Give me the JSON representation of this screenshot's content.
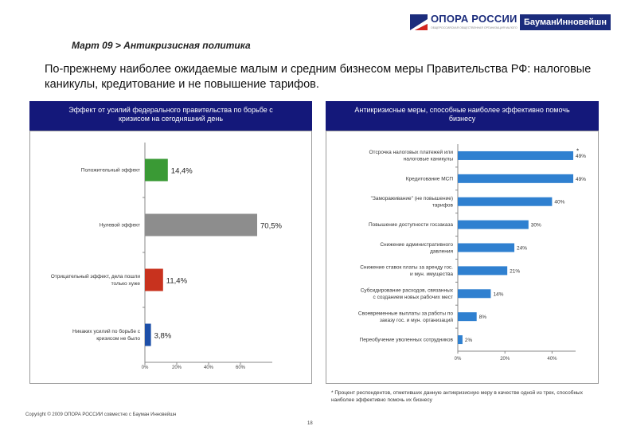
{
  "header": {
    "logo_text": "ОПОРА РОССИИ",
    "logo_subtext": "ОБЩЕРОССИЙСКАЯ ОБЩЕСТВЕННАЯ ОРГАНИЗАЦИЯ МАЛОГО И СРЕДНЕГО ПРЕДПРИНИМАТЕЛЬСТВА",
    "partner_logo_text": "БауманИнновейшн",
    "colors": {
      "brand": "#1b2c7c",
      "flag_red": "#d4261f"
    }
  },
  "section_title": "Март 09 > Антикризисная политика",
  "headline": "По-прежнему наиболее ожидаемые малым и средним бизнесом меры Правительства РФ: налоговые каникулы, кредитование и не повышение тарифов.",
  "left_panel": {
    "header_line1": "Эффект от усилий федерального правительства по борьбе с",
    "header_line2": "кризисом на сегодняшний день"
  },
  "right_panel": {
    "header_line1": "Антикризисные меры, способные наиболее эффективно помочь",
    "header_line2": "бизнесу"
  },
  "chart_data": [
    {
      "type": "bar",
      "orientation": "horizontal",
      "categories": [
        [
          "Положительный эффект"
        ],
        [
          "Нулевой эффект"
        ],
        [
          "Отрицательный эффект, дела пошли",
          "только хуже"
        ],
        [
          "Никаких усилий по борьбе с",
          "кризисом не было"
        ]
      ],
      "values": [
        14.4,
        70.5,
        11.4,
        3.8
      ],
      "value_labels": [
        "14,4%",
        "70,5%",
        "11,4%",
        "3,8%"
      ],
      "colors": [
        "#3a9a35",
        "#8d8d8d",
        "#c8321e",
        "#1d4fa8"
      ],
      "xlim": [
        0,
        80
      ],
      "xticks": [
        0,
        20,
        40,
        60
      ],
      "xtick_labels": [
        "0%",
        "20%",
        "40%",
        "60%"
      ]
    },
    {
      "type": "bar",
      "orientation": "horizontal",
      "categories": [
        [
          "Отсрочка налоговых платежей или",
          "налоговые каникулы"
        ],
        [
          "Кредитование МСП"
        ],
        [
          "\"Замораживание\" (не повышение)",
          "тарифов"
        ],
        [
          "Повышение доступности госзаказа"
        ],
        [
          "Снижение административного",
          "давления"
        ],
        [
          "Снижение ставок платы за аренду гос.",
          "и мун. имущества"
        ],
        [
          "Субсидирование расходов, связанных",
          "с созданием новых рабочих мест"
        ],
        [
          "Своевременные выплаты за работы по",
          "заказу гос. и мун. организаций"
        ],
        [
          "Переобучение уволенных сотрудников"
        ]
      ],
      "values": [
        49,
        49,
        40,
        30,
        24,
        21,
        14,
        8,
        2
      ],
      "value_labels": [
        "49%",
        "49%",
        "40%",
        "30%",
        "24%",
        "21%",
        "14%",
        "8%",
        "2%"
      ],
      "color": "#2f80d0",
      "xlim": [
        0,
        50
      ],
      "xticks": [
        0,
        20,
        40
      ],
      "xtick_labels": [
        "0%",
        "20%",
        "40%"
      ],
      "annotation": "*"
    }
  ],
  "footnote": "* Процент респондентов, отметивших данную антикризисную меру в качестве одной из трех, способных наиболее эффективно помочь их бизнесу",
  "copyright": "Copyright © 2009 ОПОРА РОССИИ совместно с Бауман Инновейшн",
  "page_number": "18"
}
